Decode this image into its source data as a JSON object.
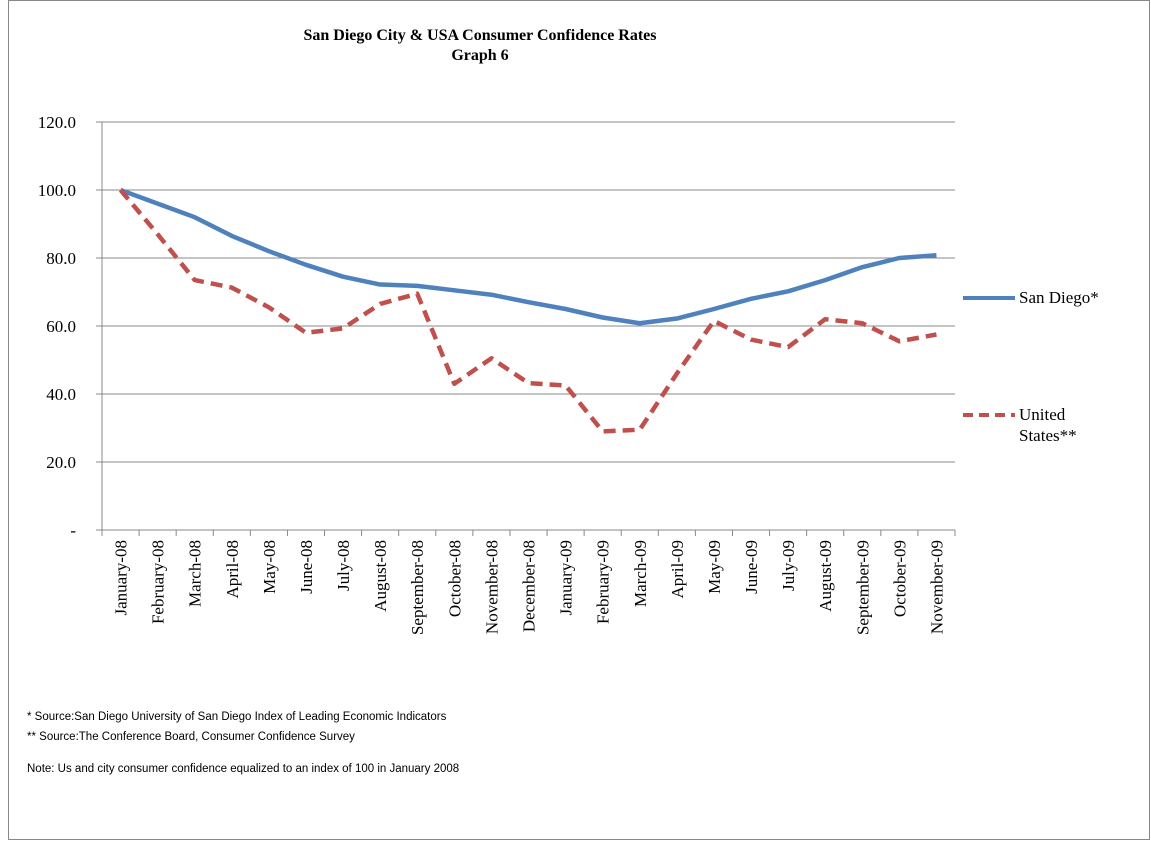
{
  "chart_data": {
    "type": "line",
    "title": "San Diego City & USA Consumer Confidence Rates",
    "subtitle": "Graph 6",
    "categories": [
      "January-08",
      "February-08",
      "March-08",
      "April-08",
      "May-08",
      "June-08",
      "July-08",
      "August-08",
      "September-08",
      "October-08",
      "November-08",
      "December-08",
      "January-09",
      "February-09",
      "March-09",
      "April-09",
      "May-09",
      "June-09",
      "July-09",
      "August-09",
      "September-09",
      "October-09",
      "November-09"
    ],
    "series": [
      {
        "name": "San Diego*",
        "color": "#4f81bd",
        "dash": "solid",
        "values": [
          100,
          96,
          92,
          86.5,
          82,
          78,
          74.5,
          72.2,
          71.8,
          70.5,
          69.2,
          67,
          65,
          62.5,
          60.8,
          62.2,
          65,
          68,
          70.2,
          73.5,
          77.3,
          80,
          80.8
        ]
      },
      {
        "name": "United States**",
        "color": "#c0504d",
        "dash": "dashed",
        "values": [
          100,
          87,
          73.5,
          71.3,
          65.5,
          58,
          59.3,
          66.5,
          69.5,
          43,
          50.5,
          43.2,
          42.5,
          29,
          29.5,
          46,
          61.5,
          56,
          53.8,
          62,
          60.8,
          55.5,
          57.5
        ]
      }
    ],
    "ylim": [
      0,
      120
    ],
    "yticks": [
      {
        "value": 0,
        "label": "-"
      },
      {
        "value": 20,
        "label": "20.0"
      },
      {
        "value": 40,
        "label": "40.0"
      },
      {
        "value": 60,
        "label": "60.0"
      },
      {
        "value": 80,
        "label": "80.0"
      },
      {
        "value": 100,
        "label": "100.0"
      },
      {
        "value": 120,
        "label": "120.0"
      }
    ],
    "grid": true,
    "legend": "right",
    "notes": [
      "* Source:San Diego University of San Diego Index of Leading Economic Indicators",
      "** Source:The Conference Board, Consumer Confidence Survey",
      "Note: Us and city consumer confidence  equalized to an index of 100 in January 2008"
    ]
  }
}
